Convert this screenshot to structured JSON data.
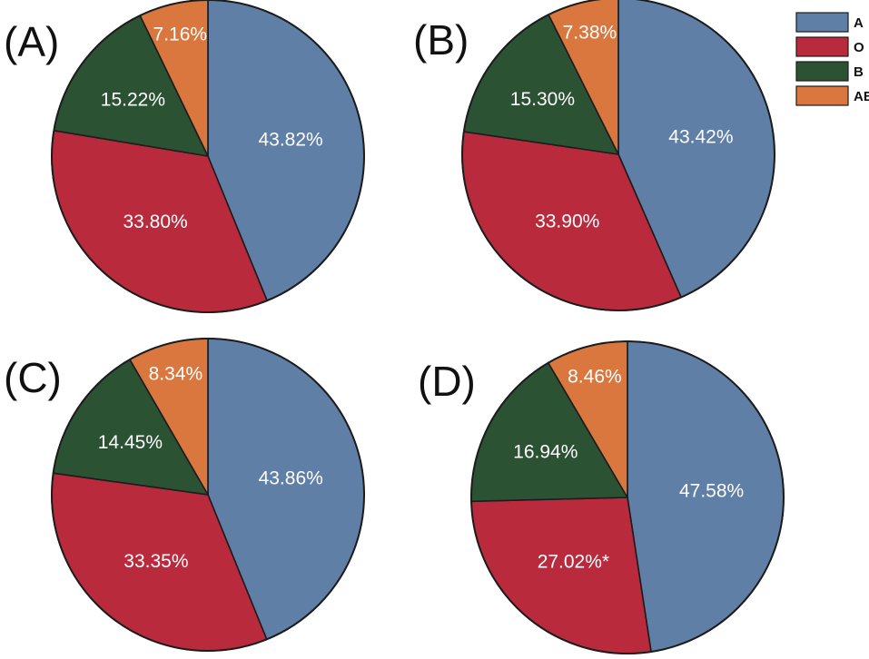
{
  "colors": {
    "A": "#5f7fa6",
    "O": "#b82a3c",
    "B": "#2c5234",
    "AB": "#d9773f"
  },
  "legend": [
    {
      "key": "A",
      "label": "A"
    },
    {
      "key": "O",
      "label": "O"
    },
    {
      "key": "B",
      "label": "B"
    },
    {
      "key": "AB",
      "label": "AB"
    }
  ],
  "chart_data": [
    {
      "type": "pie",
      "panel": "(A)",
      "slices": [
        {
          "key": "A",
          "value": 43.82,
          "label": "43.82%"
        },
        {
          "key": "O",
          "value": 33.8,
          "label": "33.80%"
        },
        {
          "key": "B",
          "value": 15.22,
          "label": "15.22%"
        },
        {
          "key": "AB",
          "value": 7.16,
          "label": "7.16%"
        }
      ]
    },
    {
      "type": "pie",
      "panel": "(B)",
      "slices": [
        {
          "key": "A",
          "value": 43.42,
          "label": "43.42%"
        },
        {
          "key": "O",
          "value": 33.9,
          "label": "33.90%"
        },
        {
          "key": "B",
          "value": 15.3,
          "label": "15.30%"
        },
        {
          "key": "AB",
          "value": 7.38,
          "label": "7.38%"
        }
      ]
    },
    {
      "type": "pie",
      "panel": "(C)",
      "slices": [
        {
          "key": "A",
          "value": 43.86,
          "label": "43.86%"
        },
        {
          "key": "O",
          "value": 33.35,
          "label": "33.35%"
        },
        {
          "key": "B",
          "value": 14.45,
          "label": "14.45%"
        },
        {
          "key": "AB",
          "value": 8.34,
          "label": "8.34%"
        }
      ]
    },
    {
      "type": "pie",
      "panel": "(D)",
      "slices": [
        {
          "key": "A",
          "value": 47.58,
          "label": "47.58%"
        },
        {
          "key": "O",
          "value": 27.02,
          "label": "27.02%*"
        },
        {
          "key": "B",
          "value": 16.94,
          "label": "16.94%"
        },
        {
          "key": "AB",
          "value": 8.46,
          "label": "8.46%"
        }
      ]
    }
  ]
}
